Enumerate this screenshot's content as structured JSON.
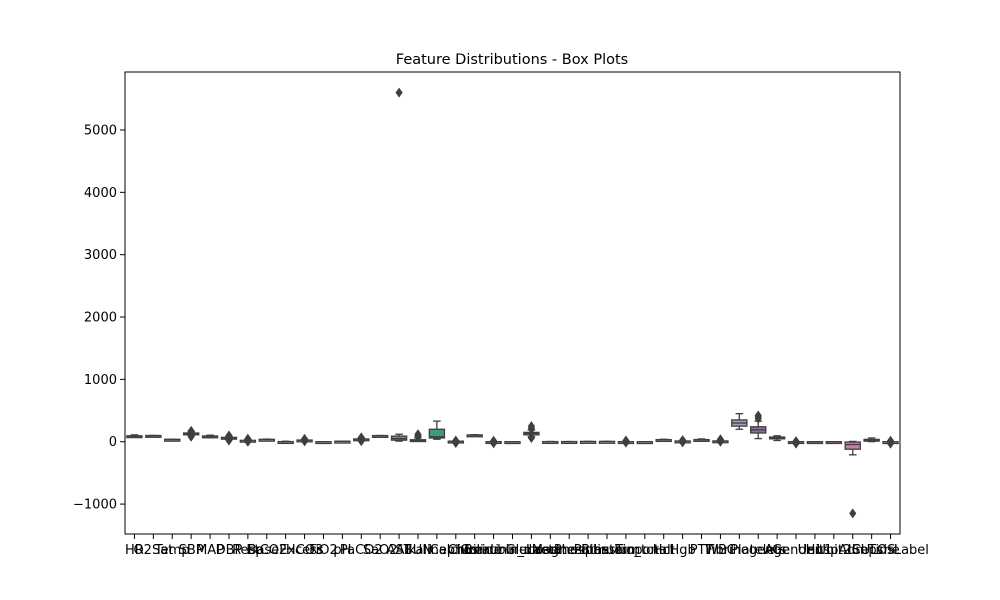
{
  "chart_data": {
    "type": "box",
    "title": "Feature Distributions - Box Plots",
    "xlabel": "",
    "ylabel": "",
    "ylim": [
      -1480,
      5930
    ],
    "yticks": [
      -1000,
      0,
      1000,
      2000,
      3000,
      4000,
      5000
    ],
    "ytick_labels": [
      "−1000",
      "0",
      "1000",
      "2000",
      "3000",
      "4000",
      "5000"
    ],
    "grid": false,
    "legend": "none",
    "categories": [
      "HR",
      "O2Sat",
      "Temp",
      "SBP",
      "MAP",
      "DBP",
      "Resp",
      "EtCO2",
      "BaseExcess",
      "HCO3",
      "FiO2",
      "pH",
      "PaCO2",
      "SaO2",
      "AST",
      "BUN",
      "Alkalinephos",
      "Calcium",
      "Chloride",
      "Creatinine",
      "Bilirubin_direct",
      "Glucose",
      "Lactate",
      "Magnesium",
      "Phosphate",
      "Potassium",
      "Bilirubin_total",
      "TroponinI",
      "Hct",
      "Hgb",
      "PTT",
      "WBC",
      "Fibrinogen",
      "Platelets",
      "Age",
      "Gender",
      "Unit1",
      "Unit2",
      "HospAdmTime",
      "ICULOS",
      "SepsisLabel"
    ],
    "series": [
      {
        "whislo": 70,
        "q1": 80,
        "med": 87,
        "q3": 95,
        "whishi": 110,
        "fliers": [],
        "color": "#6b9ac4"
      },
      {
        "whislo": 92,
        "q1": 96,
        "med": 98,
        "q3": 100,
        "whishi": 100,
        "fliers": [],
        "color": "#6f93b8"
      },
      {
        "whislo": 36,
        "q1": 36.5,
        "med": 37,
        "q3": 37.5,
        "whishi": 38,
        "fliers": [],
        "color": "#7aa0c2"
      },
      {
        "whislo": 100,
        "q1": 115,
        "med": 125,
        "q3": 140,
        "whishi": 160,
        "fliers": [
          80,
          95,
          175
        ],
        "color": "#8fa8bc"
      },
      {
        "whislo": 65,
        "q1": 75,
        "med": 82,
        "q3": 92,
        "whishi": 105,
        "fliers": [],
        "color": "#9db1c4"
      },
      {
        "whislo": 40,
        "q1": 55,
        "med": 62,
        "q3": 70,
        "whishi": 85,
        "fliers": [
          20,
          30,
          100
        ],
        "color": "#a4b6c7"
      },
      {
        "whislo": 12,
        "q1": 16,
        "med": 19,
        "q3": 22,
        "whishi": 30,
        "fliers": [
          0,
          10,
          40,
          50
        ],
        "color": "#b0bfcc"
      },
      {
        "whislo": 30,
        "q1": 33,
        "med": 35,
        "q3": 38,
        "whishi": 42,
        "fliers": [],
        "color": "#c0c6cc"
      },
      {
        "whislo": -8,
        "q1": -2,
        "med": 0,
        "q3": 2,
        "whishi": 8,
        "fliers": [],
        "color": "#cbc3bb"
      },
      {
        "whislo": 18,
        "q1": 22,
        "med": 24,
        "q3": 27,
        "whishi": 32,
        "fliers": [
          5,
          40,
          45
        ],
        "color": "#cdbfb1"
      },
      {
        "whislo": 0,
        "q1": 0.3,
        "med": 0.4,
        "q3": 0.5,
        "whishi": 1,
        "fliers": [],
        "color": "#c9b8a4"
      },
      {
        "whislo": 7.3,
        "q1": 7.35,
        "med": 7.4,
        "q3": 7.45,
        "whishi": 7.5,
        "fliers": [],
        "color": "#c4b196"
      },
      {
        "whislo": 28,
        "q1": 35,
        "med": 40,
        "q3": 45,
        "whishi": 55,
        "fliers": [
          10,
          20,
          60,
          70
        ],
        "color": "#b9ac88"
      },
      {
        "whislo": 90,
        "q1": 95,
        "med": 97,
        "q3": 99,
        "whishi": 100,
        "fliers": [],
        "color": "#b0a97c"
      },
      {
        "whislo": 10,
        "q1": 25,
        "med": 50,
        "q3": 90,
        "whishi": 120,
        "fliers": [
          5600
        ],
        "color": "#5e9b7a"
      },
      {
        "whislo": 8,
        "q1": 15,
        "med": 22,
        "q3": 32,
        "whishi": 60,
        "fliers": [
          80,
          100,
          120
        ],
        "color": "#6aa588"
      },
      {
        "whislo": 40,
        "q1": 60,
        "med": 80,
        "q3": 200,
        "whishi": 330,
        "fliers": [],
        "color": "#3f9b7a"
      },
      {
        "whislo": 7,
        "q1": 8,
        "med": 8.5,
        "q3": 9,
        "whishi": 10,
        "fliers": [
          -20,
          -10,
          20
        ],
        "color": "#5ea383"
      },
      {
        "whislo": 100,
        "q1": 103,
        "med": 106,
        "q3": 109,
        "whishi": 113,
        "fliers": [],
        "color": "#6aab8d"
      },
      {
        "whislo": 0.4,
        "q1": 0.8,
        "med": 1,
        "q3": 1.5,
        "whishi": 2.5,
        "fliers": [
          -25,
          -10,
          15
        ],
        "color": "#7fb49b"
      },
      {
        "whislo": 0,
        "q1": 0.1,
        "med": 0.2,
        "q3": 0.4,
        "whishi": 1,
        "fliers": [],
        "color": "#91bda7"
      },
      {
        "whislo": 80,
        "q1": 110,
        "med": 130,
        "q3": 150,
        "whishi": 190,
        "fliers": [
          60,
          70,
          200,
          220,
          250
        ],
        "color": "#a0c2b0"
      },
      {
        "whislo": 0.5,
        "q1": 1,
        "med": 1.5,
        "q3": 2,
        "whishi": 4,
        "fliers": [],
        "color": "#b1c7b8"
      },
      {
        "whislo": 1.6,
        "q1": 1.9,
        "med": 2,
        "q3": 2.2,
        "whishi": 2.6,
        "fliers": [],
        "color": "#bcc8bc"
      },
      {
        "whislo": 2,
        "q1": 3,
        "med": 3.5,
        "q3": 4,
        "whishi": 5,
        "fliers": [],
        "color": "#c4c6bf"
      },
      {
        "whislo": 3.2,
        "q1": 3.7,
        "med": 4,
        "q3": 4.4,
        "whishi": 5,
        "fliers": [],
        "color": "#c8c2c1"
      },
      {
        "whislo": 0.2,
        "q1": 0.5,
        "med": 0.7,
        "q3": 1,
        "whishi": 2,
        "fliers": [
          -15,
          10,
          20
        ],
        "color": "#c9bdc2"
      },
      {
        "whislo": 0,
        "q1": 0.01,
        "med": 0.03,
        "q3": 0.1,
        "whishi": 0.3,
        "fliers": [],
        "color": "#c8b8c2"
      },
      {
        "whislo": 25,
        "q1": 28,
        "med": 31,
        "q3": 34,
        "whishi": 40,
        "fliers": [],
        "color": "#c4b2c1"
      },
      {
        "whislo": 8,
        "q1": 9.5,
        "med": 10.5,
        "q3": 11.5,
        "whishi": 13,
        "fliers": [
          -10,
          20,
          25
        ],
        "color": "#bfadc0"
      },
      {
        "whislo": 25,
        "q1": 28,
        "med": 31,
        "q3": 35,
        "whishi": 45,
        "fliers": [],
        "color": "#baa6bf"
      },
      {
        "whislo": 6,
        "q1": 8,
        "med": 10,
        "q3": 13,
        "whishi": 18,
        "fliers": [
          0,
          25,
          40
        ],
        "color": "#b3a0bd"
      },
      {
        "whislo": 200,
        "q1": 250,
        "med": 300,
        "q3": 350,
        "whishi": 450,
        "fliers": [],
        "color": "#aa99b9"
      },
      {
        "whislo": 50,
        "q1": 140,
        "med": 190,
        "q3": 240,
        "whishi": 330,
        "fliers": [
          370,
          400,
          420
        ],
        "color": "#8b6f9e"
      },
      {
        "whislo": 20,
        "q1": 50,
        "med": 62,
        "q3": 75,
        "whishi": 95,
        "fliers": [],
        "color": "#95789f"
      },
      {
        "whislo": 0,
        "q1": 0,
        "med": 1,
        "q3": 1,
        "whishi": 1,
        "fliers": [
          -30,
          -10,
          10
        ],
        "color": "#a381a3"
      },
      {
        "whislo": 0,
        "q1": 0,
        "med": 0.5,
        "q3": 1,
        "whishi": 1,
        "fliers": [],
        "color": "#b08aa7"
      },
      {
        "whislo": 0,
        "q1": 0,
        "med": 0.5,
        "q3": 1,
        "whishi": 1,
        "fliers": [],
        "color": "#bb92ab"
      },
      {
        "whislo": -210,
        "q1": -120,
        "med": -45,
        "q3": -5,
        "whishi": 5,
        "fliers": [
          -1150
        ],
        "color": "#d07bb0"
      },
      {
        "whislo": 1,
        "q1": 12,
        "med": 24,
        "q3": 38,
        "whishi": 60,
        "fliers": [],
        "color": "#d28fb8"
      },
      {
        "whislo": 0,
        "q1": 0,
        "med": 0,
        "q3": 0,
        "whishi": 0,
        "fliers": [
          -30,
          -10,
          15
        ],
        "color": "#d69cbf"
      }
    ]
  }
}
